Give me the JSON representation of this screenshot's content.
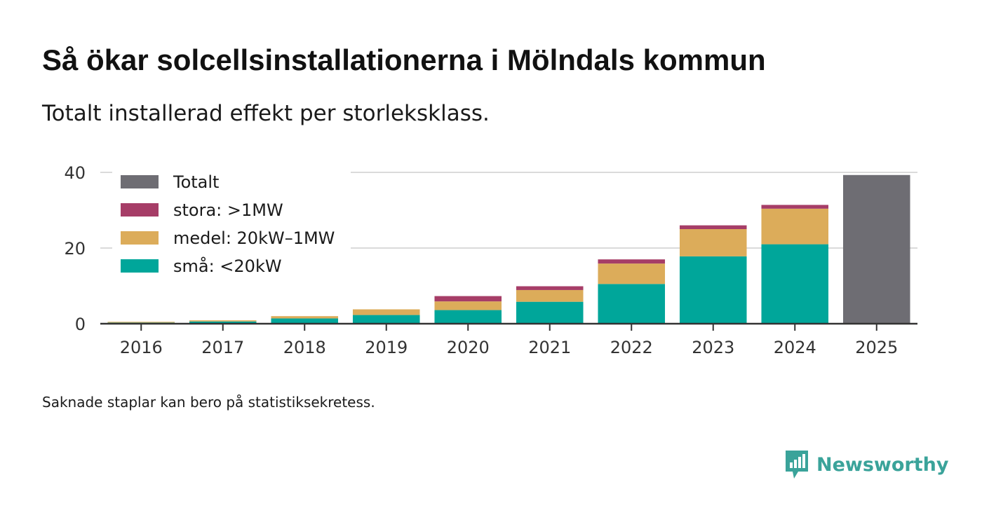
{
  "title": "Så ökar solcellsinstallationerna i Mölndals kommun",
  "subtitle": "Totalt installerad effekt per storleksklass.",
  "note": "Saknade staplar kan bero på statistiksekretess.",
  "brand": {
    "name": "Newsworthy",
    "icon": "newsworthy-logo-icon",
    "color": "#3aa39a"
  },
  "chart_data": {
    "type": "bar",
    "stacked": true,
    "categories": [
      "2016",
      "2017",
      "2018",
      "2019",
      "2020",
      "2021",
      "2022",
      "2023",
      "2024",
      "2025"
    ],
    "series": [
      {
        "name": "små: <20kW",
        "color": "#00a69a",
        "values": [
          0.3,
          0.6,
          1.4,
          2.3,
          3.6,
          5.8,
          10.5,
          17.8,
          21.0,
          0
        ]
      },
      {
        "name": "medel: 20kW–1MW",
        "color": "#dcac5a",
        "values": [
          0.2,
          0.3,
          0.6,
          1.5,
          2.3,
          3.1,
          5.4,
          7.2,
          9.4,
          0
        ]
      },
      {
        "name": "stora: >1MW",
        "color": "#a63d67",
        "values": [
          0,
          0,
          0,
          0,
          1.4,
          1.0,
          1.1,
          1.0,
          1.0,
          0
        ]
      },
      {
        "name": "Totalt",
        "color": "#6e6d73",
        "values": [
          0,
          0,
          0,
          0,
          0,
          0,
          0,
          0,
          0,
          39.3
        ]
      }
    ],
    "legend_order": [
      "Totalt",
      "stora: >1MW",
      "medel: 20kW–1MW",
      "små: <20kW"
    ],
    "legend_position": "top-left",
    "yticks": [
      0,
      20,
      40
    ],
    "ylim": [
      0,
      40
    ],
    "xlabel": "",
    "ylabel": "",
    "grid": true
  }
}
